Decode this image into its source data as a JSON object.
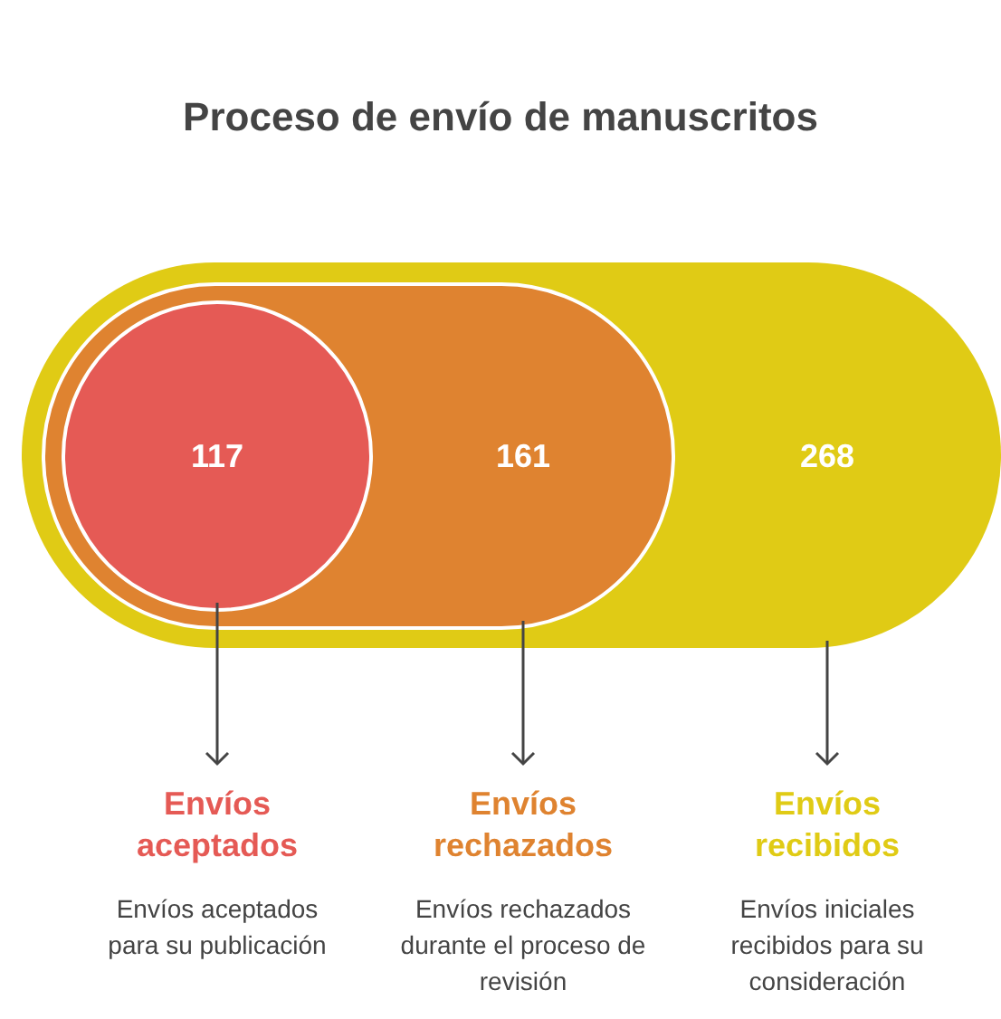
{
  "chart_data": {
    "type": "other",
    "title": "Proceso de envío de manuscritos",
    "categories": [
      "Envíos aceptados",
      "Envíos rechazados",
      "Envíos recibidos"
    ],
    "values": [
      117,
      161,
      268
    ],
    "data_labels": true,
    "colors": [
      "#e55a55",
      "#df8330",
      "#e0cb15"
    ],
    "annotations": [
      "Envíos aceptados para su publicación",
      "Envíos rechazados durante el proceso de revisión",
      "Envíos iniciales recibidos para su consideración"
    ]
  }
}
